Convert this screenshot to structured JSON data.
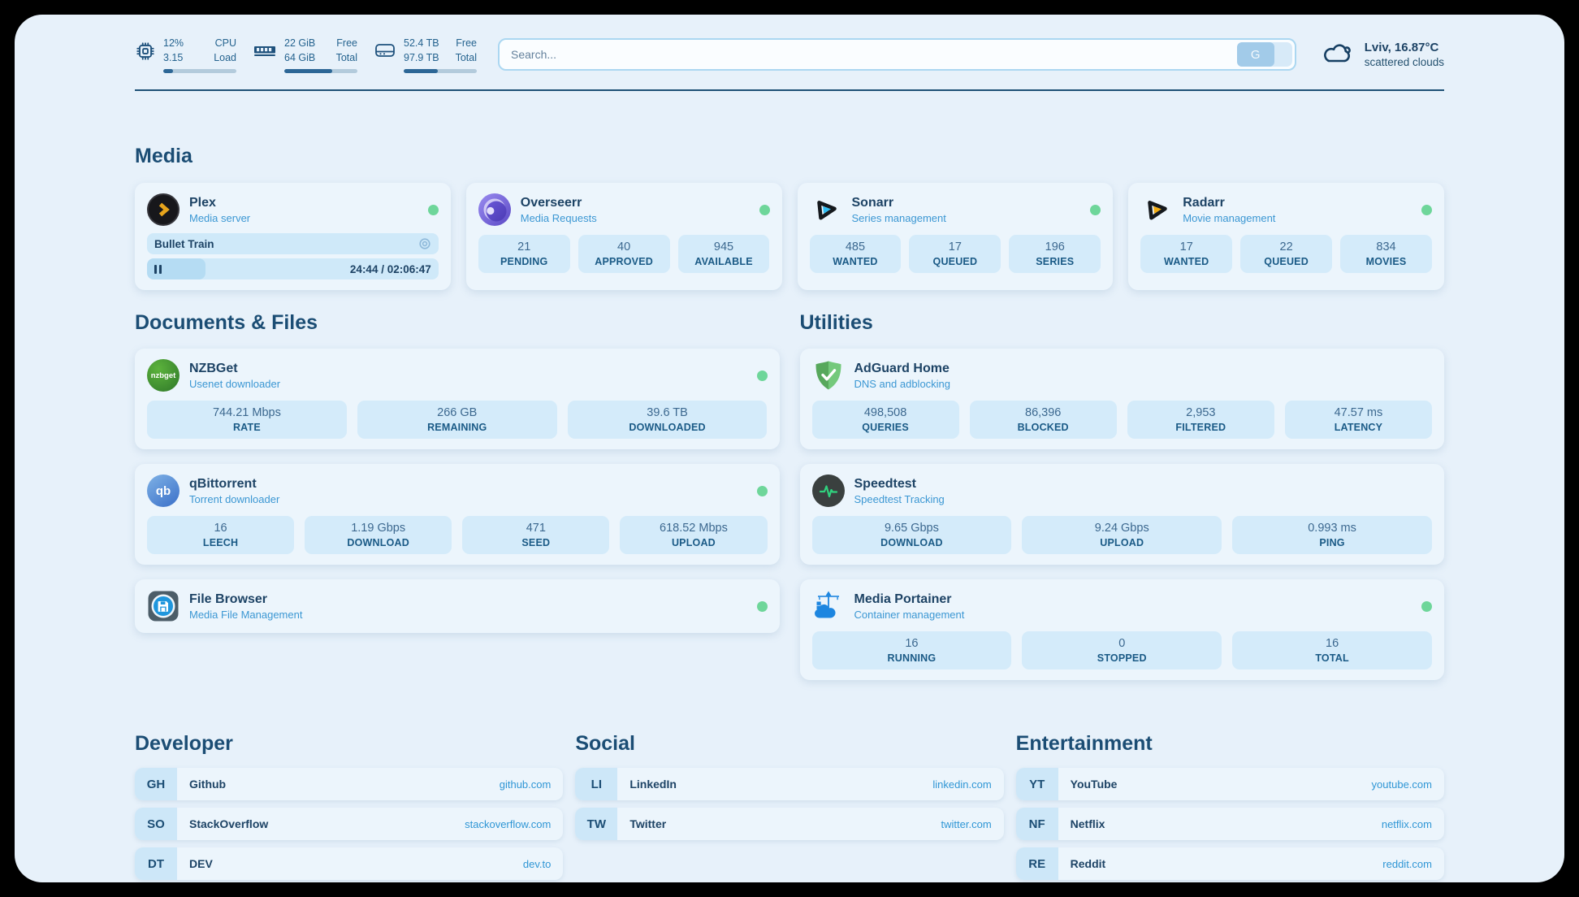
{
  "colors": {
    "page_bg": "#e7f1fa",
    "card_bg": "#ecf5fc",
    "stat_box_bg": "#d4ebfa",
    "dark_blue": "#1c4e75",
    "accent_blue": "#3b97d3",
    "link_blue": "#2f96d5",
    "status_green": "#6ed69a"
  },
  "topbar": {
    "cpu": {
      "line1_value": "12%",
      "line2_value": "3.15",
      "line1_label": "CPU",
      "line2_label": "Load",
      "bar_pct": 13
    },
    "ram": {
      "line1_value": "22 GiB",
      "line2_value": "64 GiB",
      "line1_label": "Free",
      "line2_label": "Total",
      "bar_pct": 66
    },
    "disk": {
      "line1_value": "52.4 TB",
      "line2_value": "97.9 TB",
      "line1_label": "Free",
      "line2_label": "Total",
      "bar_pct": 47
    },
    "search": {
      "placeholder": "Search...",
      "button_label": "G"
    },
    "weather": {
      "location": "Lviv, 16.87°C",
      "condition": "scattered clouds"
    }
  },
  "media": {
    "title": "Media",
    "plex": {
      "name": "Plex",
      "subtitle": "Media server",
      "now_playing": "Bullet Train",
      "time": "24:44 / 02:06:47",
      "progress_pct": 20
    },
    "overseerr": {
      "name": "Overseerr",
      "subtitle": "Media Requests",
      "stats": [
        {
          "value": "21",
          "label": "PENDING"
        },
        {
          "value": "40",
          "label": "APPROVED"
        },
        {
          "value": "945",
          "label": "AVAILABLE"
        }
      ]
    },
    "sonarr": {
      "name": "Sonarr",
      "subtitle": "Series management",
      "stats": [
        {
          "value": "485",
          "label": "WANTED"
        },
        {
          "value": "17",
          "label": "QUEUED"
        },
        {
          "value": "196",
          "label": "SERIES"
        }
      ]
    },
    "radarr": {
      "name": "Radarr",
      "subtitle": "Movie management",
      "stats": [
        {
          "value": "17",
          "label": "WANTED"
        },
        {
          "value": "22",
          "label": "QUEUED"
        },
        {
          "value": "834",
          "label": "MOVIES"
        }
      ]
    }
  },
  "documents": {
    "title": "Documents & Files",
    "nzbget": {
      "name": "NZBGet",
      "subtitle": "Usenet downloader",
      "icon_text": "nzbget",
      "stats": [
        {
          "value": "744.21 Mbps",
          "label": "RATE"
        },
        {
          "value": "266 GB",
          "label": "REMAINING"
        },
        {
          "value": "39.6 TB",
          "label": "DOWNLOADED"
        }
      ]
    },
    "qbittorrent": {
      "name": "qBittorrent",
      "subtitle": "Torrent downloader",
      "icon_text": "qb",
      "stats": [
        {
          "value": "16",
          "label": "LEECH"
        },
        {
          "value": "1.19 Gbps",
          "label": "DOWNLOAD"
        },
        {
          "value": "471",
          "label": "SEED"
        },
        {
          "value": "618.52 Mbps",
          "label": "UPLOAD"
        }
      ]
    },
    "filebrowser": {
      "name": "File Browser",
      "subtitle": "Media File Management"
    }
  },
  "utilities": {
    "title": "Utilities",
    "adguard": {
      "name": "AdGuard Home",
      "subtitle": "DNS and adblocking",
      "stats": [
        {
          "value": "498,508",
          "label": "QUERIES"
        },
        {
          "value": "86,396",
          "label": "BLOCKED"
        },
        {
          "value": "2,953",
          "label": "FILTERED"
        },
        {
          "value": "47.57 ms",
          "label": "LATENCY"
        }
      ]
    },
    "speedtest": {
      "name": "Speedtest",
      "subtitle": "Speedtest Tracking",
      "stats": [
        {
          "value": "9.65 Gbps",
          "label": "DOWNLOAD"
        },
        {
          "value": "9.24 Gbps",
          "label": "UPLOAD"
        },
        {
          "value": "0.993 ms",
          "label": "PING"
        }
      ]
    },
    "portainer": {
      "name": "Media Portainer",
      "subtitle": "Container management",
      "stats": [
        {
          "value": "16",
          "label": "RUNNING"
        },
        {
          "value": "0",
          "label": "STOPPED"
        },
        {
          "value": "16",
          "label": "TOTAL"
        }
      ]
    }
  },
  "bookmarks": {
    "developer": {
      "title": "Developer",
      "items": [
        {
          "abbr": "GH",
          "name": "Github",
          "url": "github.com"
        },
        {
          "abbr": "SO",
          "name": "StackOverflow",
          "url": "stackoverflow.com"
        },
        {
          "abbr": "DT",
          "name": "DEV",
          "url": "dev.to"
        }
      ]
    },
    "social": {
      "title": "Social",
      "items": [
        {
          "abbr": "LI",
          "name": "LinkedIn",
          "url": "linkedin.com"
        },
        {
          "abbr": "TW",
          "name": "Twitter",
          "url": "twitter.com"
        }
      ]
    },
    "entertainment": {
      "title": "Entertainment",
      "items": [
        {
          "abbr": "YT",
          "name": "YouTube",
          "url": "youtube.com"
        },
        {
          "abbr": "NF",
          "name": "Netflix",
          "url": "netflix.com"
        },
        {
          "abbr": "RE",
          "name": "Reddit",
          "url": "reddit.com"
        }
      ]
    }
  }
}
